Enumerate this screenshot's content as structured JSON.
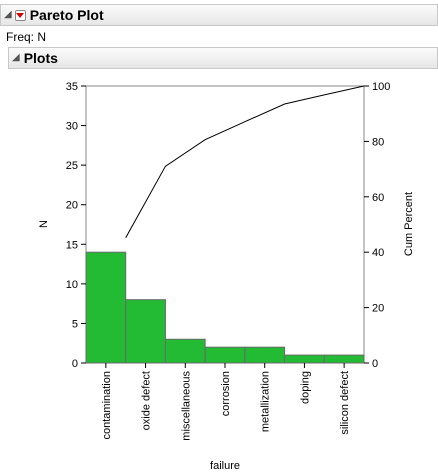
{
  "report": {
    "title": "Pareto Plot",
    "freq_label": "Freq: N",
    "section_title": "Plots"
  },
  "chart_data": {
    "type": "bar",
    "categories": [
      "contamination",
      "oxide defect",
      "miscellaneous",
      "corrosion",
      "metallization",
      "doping",
      "silicon defect"
    ],
    "values": [
      14,
      8,
      3,
      2,
      2,
      1,
      1
    ],
    "cum_percent": [
      45.2,
      71.0,
      80.6,
      87.1,
      93.5,
      96.8,
      100
    ],
    "xlabel": "failure",
    "ylabel": "N",
    "y2label": "Cum Percent",
    "ylim": [
      0,
      35
    ],
    "yticks": [
      0,
      5,
      10,
      15,
      20,
      25,
      30,
      35
    ],
    "y2lim": [
      0,
      100
    ],
    "y2ticks": [
      0,
      20,
      40,
      60,
      80,
      100
    ],
    "bar_color": "#22bb33",
    "line_color": "#000000"
  }
}
